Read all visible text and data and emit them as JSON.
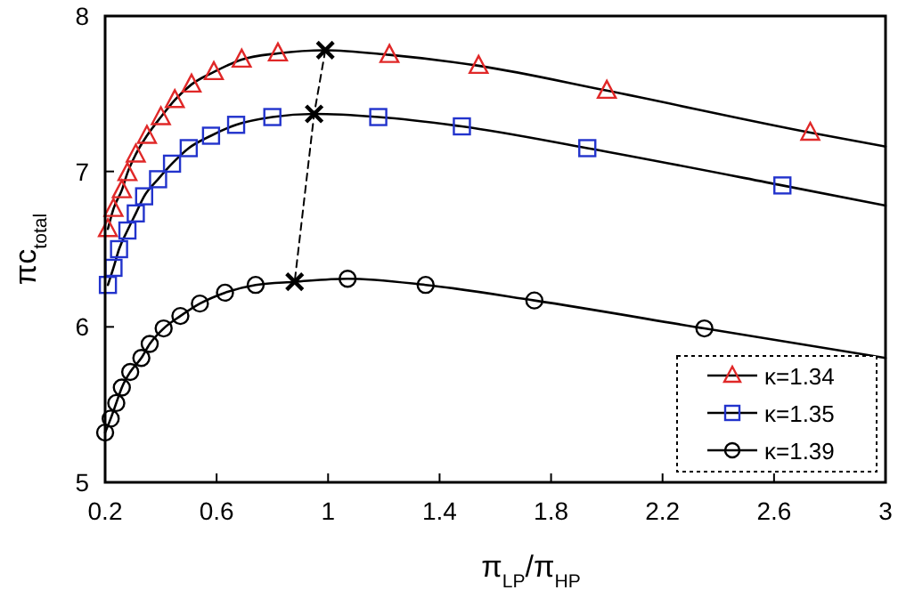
{
  "chart_data": {
    "type": "line",
    "xlabel": "π$_{LP}$/π$_{HP}$",
    "ylabel": "πc$_{total}$",
    "xlim": [
      0.2,
      3
    ],
    "ylim": [
      5,
      8
    ],
    "xticks": [
      0.2,
      0.6,
      1,
      1.4,
      1.8,
      2.2,
      2.6,
      3
    ],
    "yticks": [
      5,
      6,
      7,
      8
    ],
    "legend": "bottom right",
    "series": [
      {
        "color": "#000000",
        "marker": "none",
        "x": [
          0.21,
          0.23,
          0.26,
          0.28,
          0.31,
          0.35,
          0.4,
          0.45,
          0.51,
          0.59,
          0.69,
          0.82,
          0.99,
          1.22,
          1.54,
          2.0,
          2.73,
          3
        ],
        "values": [
          6.63,
          6.76,
          6.88,
          6.99,
          7.11,
          7.23,
          7.35,
          7.46,
          7.56,
          7.64,
          7.72,
          7.76,
          7.78,
          7.75,
          7.68,
          7.52,
          7.25,
          7.16
        ]
      },
      {
        "color": "#000000",
        "marker": "none",
        "x": [
          0.21,
          0.23,
          0.25,
          0.28,
          0.31,
          0.34,
          0.39,
          0.44,
          0.5,
          0.58,
          0.67,
          0.8,
          0.95,
          1.18,
          1.48,
          1.93,
          2.63,
          3
        ],
        "values": [
          6.27,
          6.38,
          6.5,
          6.62,
          6.73,
          6.84,
          6.95,
          7.05,
          7.15,
          7.23,
          7.3,
          7.35,
          7.37,
          7.35,
          7.29,
          7.15,
          6.91,
          6.78
        ]
      },
      {
        "color": "#000000",
        "marker": "none",
        "x": [
          0.2,
          0.22,
          0.24,
          0.26,
          0.29,
          0.33,
          0.36,
          0.41,
          0.47,
          0.54,
          0.63,
          0.74,
          0.88,
          1.07,
          1.35,
          1.74,
          2.35,
          3
        ],
        "values": [
          5.32,
          5.41,
          5.51,
          5.61,
          5.71,
          5.8,
          5.89,
          5.99,
          6.07,
          6.15,
          6.22,
          6.27,
          6.29,
          6.31,
          6.27,
          6.17,
          5.99,
          5.8
        ]
      },
      {
        "color": "#000000",
        "marker": "cross",
        "line_style": "dashed",
        "x": [
          0.99,
          0.95,
          0.88
        ],
        "values": [
          7.78,
          7.37,
          6.29
        ]
      },
      {
        "type": "scatter",
        "name": "κ=1.34",
        "color": "#e02828",
        "marker": "triangle",
        "x": [
          0.21,
          0.23,
          0.26,
          0.28,
          0.31,
          0.35,
          0.4,
          0.45,
          0.51,
          0.59,
          0.69,
          0.82,
          1.22,
          1.54,
          2.0,
          2.73
        ],
        "values": [
          6.63,
          6.76,
          6.88,
          6.99,
          7.11,
          7.23,
          7.35,
          7.46,
          7.56,
          7.64,
          7.72,
          7.76,
          7.75,
          7.68,
          7.52,
          7.25
        ]
      },
      {
        "type": "scatter",
        "name": "κ=1.35",
        "color": "#2233cc",
        "marker": "square",
        "x": [
          0.21,
          0.23,
          0.25,
          0.28,
          0.31,
          0.34,
          0.39,
          0.44,
          0.5,
          0.58,
          0.67,
          0.8,
          1.18,
          1.48,
          1.93,
          2.63
        ],
        "values": [
          6.27,
          6.38,
          6.5,
          6.62,
          6.73,
          6.84,
          6.95,
          7.05,
          7.15,
          7.23,
          7.3,
          7.35,
          7.35,
          7.29,
          7.15,
          6.91
        ]
      },
      {
        "type": "scatter",
        "name": "κ=1.39",
        "color": "#000000",
        "marker": "circle",
        "x": [
          0.2,
          0.22,
          0.24,
          0.26,
          0.29,
          0.33,
          0.36,
          0.41,
          0.47,
          0.54,
          0.63,
          0.74,
          1.07,
          1.35,
          1.74,
          2.35
        ],
        "values": [
          5.32,
          5.41,
          5.51,
          5.61,
          5.71,
          5.8,
          5.89,
          5.99,
          6.07,
          6.15,
          6.22,
          6.27,
          6.31,
          6.27,
          6.17,
          5.99
        ]
      }
    ]
  }
}
